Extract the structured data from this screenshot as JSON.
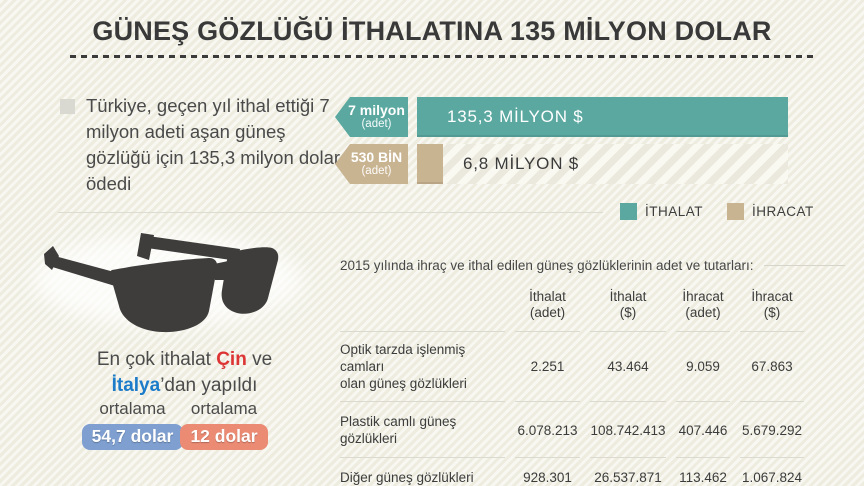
{
  "header": {
    "title": "GÜNEŞ GÖZLÜĞÜ İTHALATINA 135 MİLYON DOLAR"
  },
  "intro": {
    "text": "Türkiye, geçen yıl ithal ettiği 7 milyon adeti aşan güneş gözlüğü için 135,3 milyon dolar ödedi"
  },
  "chart_data": [
    {
      "type": "bar",
      "orientation": "horizontal",
      "title": "",
      "xlabel": "",
      "ylabel": "",
      "xlim": [
        0,
        135.3
      ],
      "max_value": 135.3,
      "grid": false,
      "legend_position": "bottom-right",
      "series": [
        {
          "name": "İTHALAT",
          "qty_label": "7 milyon",
          "qty_unit": "(adet)",
          "value": 135.3,
          "value_label": "135,3 MİLYON $",
          "color": "#5AA8A0"
        },
        {
          "name": "İHRACAT",
          "qty_label": "530 BİN",
          "qty_unit": "(adet)",
          "value": 6.8,
          "value_label": "6,8 MİLYON $",
          "color": "#C9B492"
        }
      ],
      "legend": [
        {
          "label": "İTHALAT",
          "color": "#5AA8A0"
        },
        {
          "label": "İHRACAT",
          "color": "#C9B492"
        }
      ]
    },
    {
      "type": "table",
      "caption": "2015 yılında ihraç ve ithal edilen güneş gözlüklerinin adet ve tutarları:",
      "columns": [
        {
          "line1": "İthalat",
          "line2": "(adet)"
        },
        {
          "line1": "İthalat",
          "line2": "($)"
        },
        {
          "line1": "İhracat",
          "line2": "(adet)"
        },
        {
          "line1": "İhracat",
          "line2": "($)"
        }
      ],
      "rows": [
        {
          "label_line1": "Optik tarzda işlenmiş camları",
          "label_line2": "olan güneş gözlükleri",
          "values": [
            "2.251",
            "43.464",
            "9.059",
            "67.863"
          ]
        },
        {
          "label_line1": "Plastik camlı güneş gözlükleri",
          "values": [
            "6.078.213",
            "108.742.413",
            "407.446",
            "5.679.292"
          ]
        },
        {
          "label_line1": "Diğer güneş gözlükleri",
          "values": [
            "928.301",
            "26.537.871",
            "113.462",
            "1.067.824"
          ]
        }
      ]
    }
  ],
  "origin": {
    "line1_pre": "En çok ithalat ",
    "country1": "Çin",
    "country1_color": "#DD3434",
    "line1_post": " ve",
    "country2": "İtalya",
    "country2_color": "#1C7CC9",
    "line2_suffix": "’dan yapıldı"
  },
  "averages": [
    {
      "label": "ortalama",
      "value": "54,7 dolar",
      "color": "#7E9FD0"
    },
    {
      "label": "ortalama",
      "value": "12 dolar",
      "color": "#EC8B74"
    }
  ]
}
